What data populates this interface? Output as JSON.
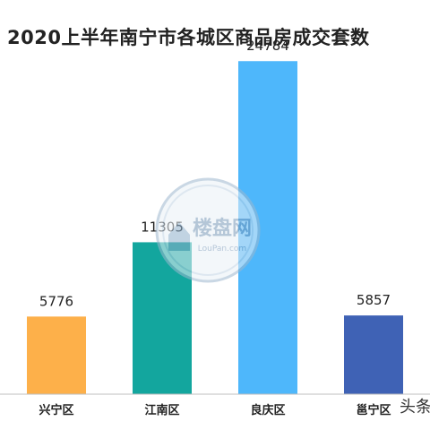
{
  "chart_data": {
    "type": "bar",
    "title": "2020上半年南宁市各城区商品房成交套数",
    "categories": [
      "兴宁区",
      "江南区",
      "良庆区",
      "邕宁区"
    ],
    "values": [
      5776,
      11305,
      24784,
      5857
    ],
    "colors": [
      "#FDB04A",
      "#13A69E",
      "#4EB7FB",
      "#3F62B5"
    ],
    "ylim": [
      0,
      28000
    ],
    "xlabel": "",
    "ylabel": "",
    "grid": false,
    "legend": "none"
  },
  "watermark": {
    "brand": "楼盘网",
    "url": "LouPan.com"
  },
  "footer_tag": "头条"
}
